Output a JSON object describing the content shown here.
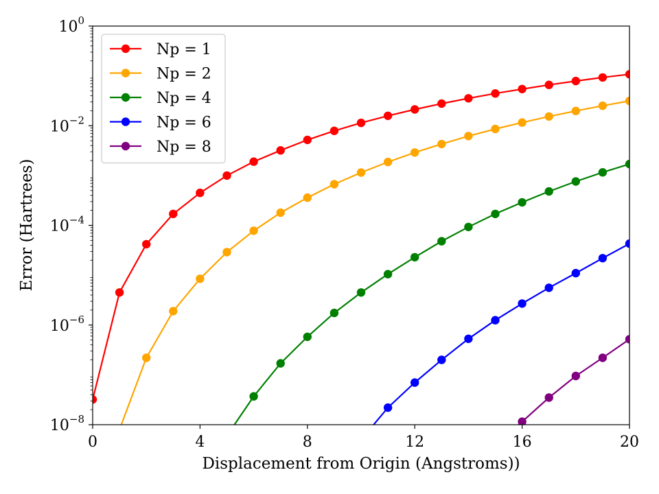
{
  "chart_data": {
    "type": "line",
    "xlabel": "Displacement from Origin (Angstroms))",
    "ylabel": "Error (Hartrees)",
    "xlim": [
      0,
      20
    ],
    "ylim": [
      1e-08,
      1
    ],
    "yscale": "log",
    "xticks": [
      0,
      4,
      8,
      12,
      16,
      20
    ],
    "yticks": [
      {
        "value": 1e-08,
        "base": "10",
        "exp": "−8"
      },
      {
        "value": 1e-06,
        "base": "10",
        "exp": "−6"
      },
      {
        "value": 0.0001,
        "base": "10",
        "exp": "−4"
      },
      {
        "value": 0.01,
        "base": "10",
        "exp": "−2"
      },
      {
        "value": 1,
        "base": "10",
        "exp": "0"
      }
    ],
    "grid": false,
    "legend": "top-left",
    "x": [
      0,
      1,
      2,
      3,
      4,
      5,
      6,
      7,
      8,
      9,
      10,
      11,
      12,
      13,
      14,
      15,
      16,
      17,
      18,
      19,
      20
    ],
    "series": [
      {
        "name": "Np = 1",
        "color": "#ff0000",
        "values": [
          3.2e-08,
          4.5e-06,
          4.2e-05,
          0.00017,
          0.00045,
          0.001,
          0.0019,
          0.0032,
          0.0052,
          0.0079,
          0.0114,
          0.0158,
          0.0212,
          0.0278,
          0.0355,
          0.0444,
          0.0545,
          0.066,
          0.079,
          0.093,
          0.108
        ]
      },
      {
        "name": "Np = 2",
        "color": "#ffa500",
        "values": [
          null,
          8e-09,
          2.2e-07,
          1.9e-06,
          8.5e-06,
          2.9e-05,
          7.8e-05,
          0.00018,
          0.00036,
          0.00067,
          0.00115,
          0.00187,
          0.0029,
          0.0043,
          0.0062,
          0.0086,
          0.0116,
          0.0153,
          0.0198,
          0.0252,
          0.0315
        ]
      },
      {
        "name": "Np = 4",
        "color": "#008000",
        "values": [
          null,
          null,
          null,
          null,
          null,
          6e-09,
          3.7e-08,
          1.7e-07,
          5.8e-07,
          1.75e-06,
          4.5e-06,
          1.05e-05,
          2.3e-05,
          4.8e-05,
          9.3e-05,
          0.00017,
          0.00029,
          0.00048,
          0.00076,
          0.00116,
          0.0017
        ]
      },
      {
        "name": "Np = 6",
        "color": "#0000ff",
        "values": [
          null,
          null,
          null,
          null,
          null,
          null,
          null,
          null,
          null,
          null,
          5e-09,
          2.2e-08,
          7e-08,
          2e-07,
          5.3e-07,
          1.25e-06,
          2.7e-06,
          5.6e-06,
          1.1e-05,
          2.2e-05,
          4.3e-05
        ]
      },
      {
        "name": "Np = 8",
        "color": "#800080",
        "values": [
          null,
          null,
          null,
          null,
          null,
          null,
          null,
          null,
          null,
          null,
          null,
          null,
          null,
          null,
          null,
          null,
          1.15e-08,
          3.5e-08,
          9.5e-08,
          2.2e-07,
          5.2e-07
        ]
      }
    ]
  }
}
